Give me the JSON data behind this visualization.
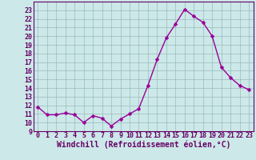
{
  "x": [
    0,
    1,
    2,
    3,
    4,
    5,
    6,
    7,
    8,
    9,
    10,
    11,
    12,
    13,
    14,
    15,
    16,
    17,
    18,
    19,
    20,
    21,
    22,
    23
  ],
  "y": [
    11.8,
    10.9,
    10.9,
    11.1,
    10.9,
    10.0,
    10.8,
    10.5,
    9.6,
    10.4,
    11.0,
    11.6,
    14.3,
    17.3,
    19.8,
    21.4,
    23.1,
    22.3,
    21.6,
    20.0,
    16.4,
    15.2,
    14.3,
    13.8
  ],
  "line_color": "#990099",
  "marker": "D",
  "marker_size": 2.5,
  "line_width": 1.0,
  "bg_color": "#cce8e8",
  "grid_color": "#99bbbb",
  "xlabel": "Windchill (Refroidissement éolien,°C)",
  "xlabel_fontsize": 7,
  "xlim": [
    -0.5,
    23.5
  ],
  "ylim": [
    9,
    24
  ],
  "yticks": [
    9,
    10,
    11,
    12,
    13,
    14,
    15,
    16,
    17,
    18,
    19,
    20,
    21,
    22,
    23
  ],
  "xticks": [
    0,
    1,
    2,
    3,
    4,
    5,
    6,
    7,
    8,
    9,
    10,
    11,
    12,
    13,
    14,
    15,
    16,
    17,
    18,
    19,
    20,
    21,
    22,
    23
  ],
  "tick_fontsize": 6,
  "tick_color": "#660066",
  "spine_color": "#660066"
}
